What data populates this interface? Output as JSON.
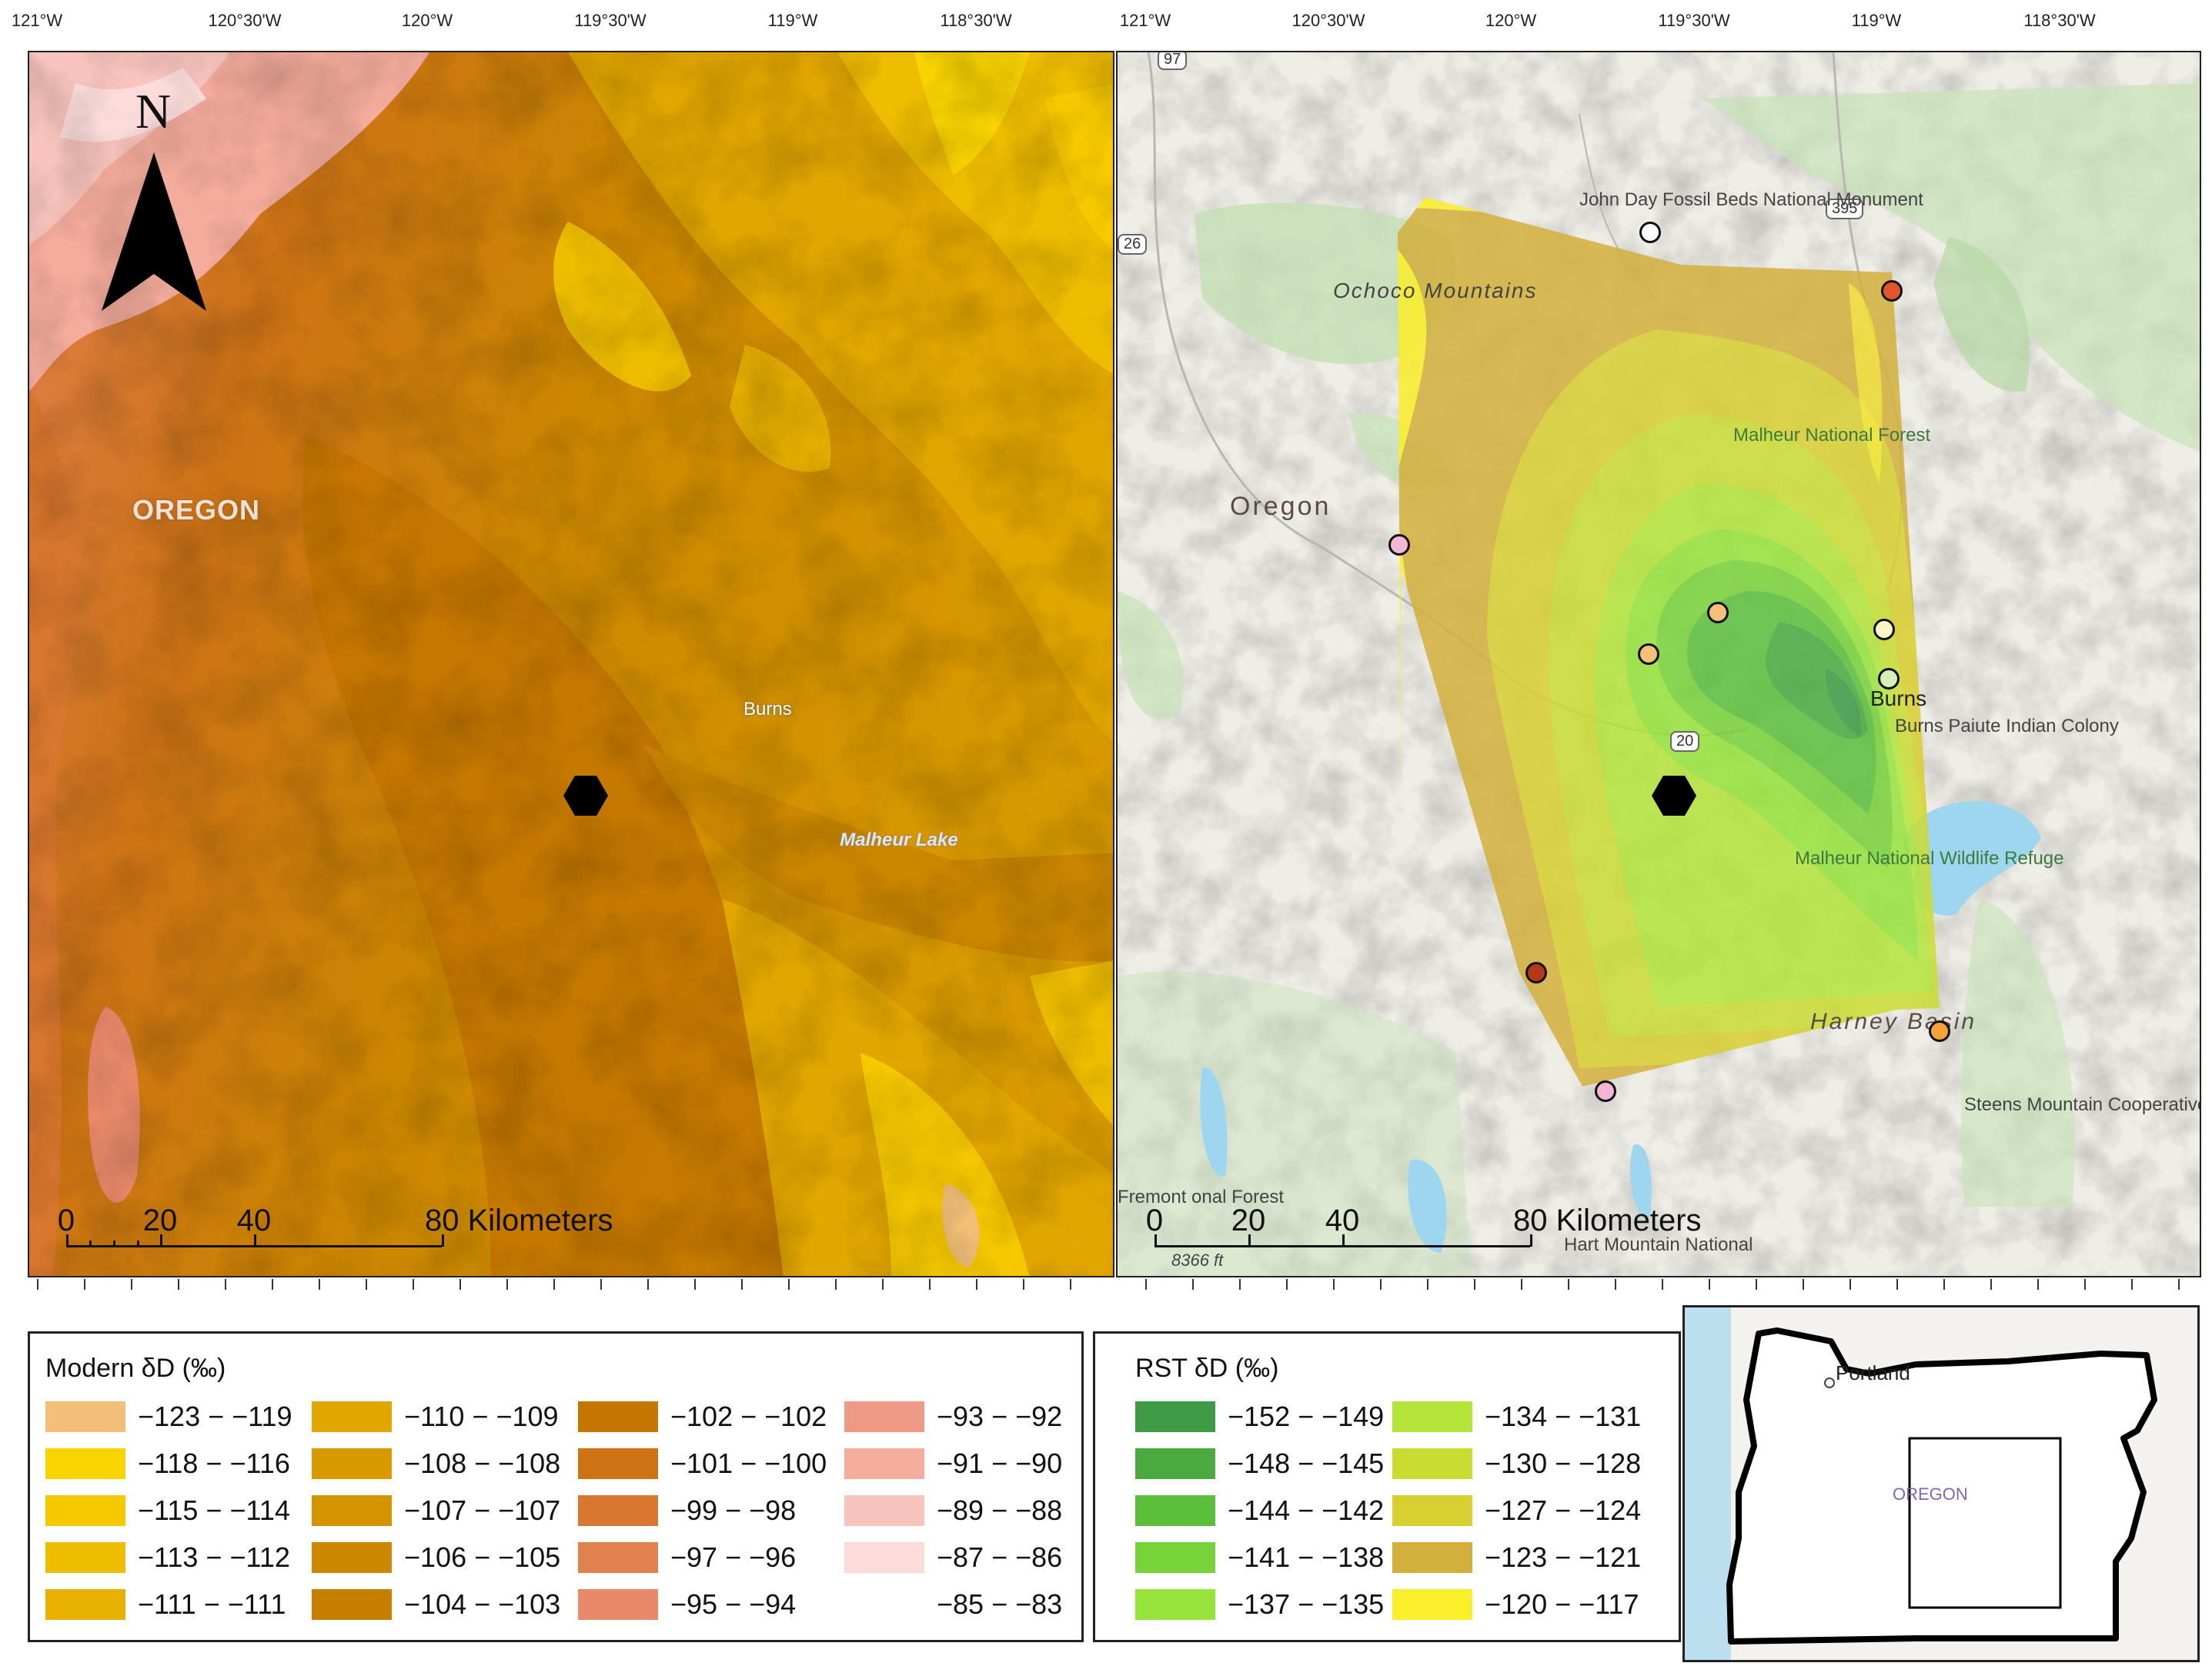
{
  "top_axis": {
    "labels": [
      "121°W",
      "120°30'W",
      "120°W",
      "119°30'W",
      "119°W",
      "118°30'W"
    ]
  },
  "left_map": {
    "north_label": "N",
    "state_label": "OREGON",
    "city_label": "Burns",
    "lake_label": "Malheur Lake",
    "scale": {
      "ticks": [
        "0",
        "20",
        "40"
      ],
      "end_label": "80 Kilometers"
    }
  },
  "right_map": {
    "labels": {
      "john_day": "John Day Fossil Beds National Monument",
      "ochoco": "Ochoco Mountains",
      "malheur_nf": "Malheur National Forest",
      "oregon": "Oregon",
      "burns": "Burns",
      "burns_paiute": "Burns Paiute Indian Colony",
      "malheur_nwr": "Malheur National Wildlife Refuge",
      "harney": "Harney Basin",
      "steens": "Steens Mountain Cooperative Management and Protection Area",
      "fremont": "Fremont onal Forest",
      "hart": "Hart Mountain National",
      "elevation": "8366 ft"
    },
    "shields": [
      "97",
      "26",
      "395",
      "20"
    ],
    "scale": {
      "ticks": [
        "0",
        "20",
        "40"
      ],
      "end_label": "80 Kilometers"
    },
    "sample_point_colors": [
      "#ffffff",
      "#e2542a",
      "#f4b6d6",
      "#f5c07a",
      "#f5c07a",
      "#fff6c8",
      "#d7f0b8",
      "#b5381a",
      "#f7a23a",
      "#f4b6d6"
    ]
  },
  "legend_modern": {
    "title": "Modern δD (‰)",
    "items": [
      {
        "label": "−123 − −119",
        "color": "#f2bf78"
      },
      {
        "label": "−118 − −116",
        "color": "#f9d400"
      },
      {
        "label": "−115 − −114",
        "color": "#f6c800"
      },
      {
        "label": "−113 −  −112",
        "color": "#efbd00"
      },
      {
        "label": "−111 − −111",
        "color": "#e8b000"
      },
      {
        "label": "−110 − −109",
        "color": "#e2a600"
      },
      {
        "label": "−108 − −108",
        "color": "#d99a00"
      },
      {
        "label": "−107 − −107",
        "color": "#d49300"
      },
      {
        "label": "−106 − −105",
        "color": "#cc8700"
      },
      {
        "label": "−104 − −103",
        "color": "#c77f00"
      },
      {
        "label": "−102 − −102",
        "color": "#c47600"
      },
      {
        "label": "−101 − −100",
        "color": "#cd7316"
      },
      {
        "label": "−99 − −98",
        "color": "#d9772e"
      },
      {
        "label": "−97 − −96",
        "color": "#e28150"
      },
      {
        "label": "−95 − −94",
        "color": "#e8896a"
      },
      {
        "label": "−93 − −92",
        "color": "#ef9a84"
      },
      {
        "label": "−91 − −90",
        "color": "#f4ac9c"
      },
      {
        "label": "−89 − −88",
        "color": "#f8c4bd"
      },
      {
        "label": "−87 − −86",
        "color": "#fbdcdb"
      },
      {
        "label": "−85 − −83",
        "color": "#ffffff"
      }
    ]
  },
  "legend_rst": {
    "title": "RST δD (‰)",
    "items": [
      {
        "label": "−152 − −149",
        "color": "#3e9a45"
      },
      {
        "label": "−148 − −145",
        "color": "#4aaa3f"
      },
      {
        "label": "−144 − −142",
        "color": "#5cbf3c"
      },
      {
        "label": "−141 − −138",
        "color": "#78d23a"
      },
      {
        "label": "−137 − −135",
        "color": "#96e33c"
      },
      {
        "label": "−134 − −131",
        "color": "#b4e43a"
      },
      {
        "label": "−130 − −128",
        "color": "#c9dc32"
      },
      {
        "label": "−127 − −124",
        "color": "#d8cf30"
      },
      {
        "label": "−123 − −121",
        "color": "#d3b03c"
      },
      {
        "label": "−120 − −117",
        "color": "#fbee2a"
      }
    ]
  },
  "inset": {
    "city": "Portland",
    "state": "OREGON"
  }
}
